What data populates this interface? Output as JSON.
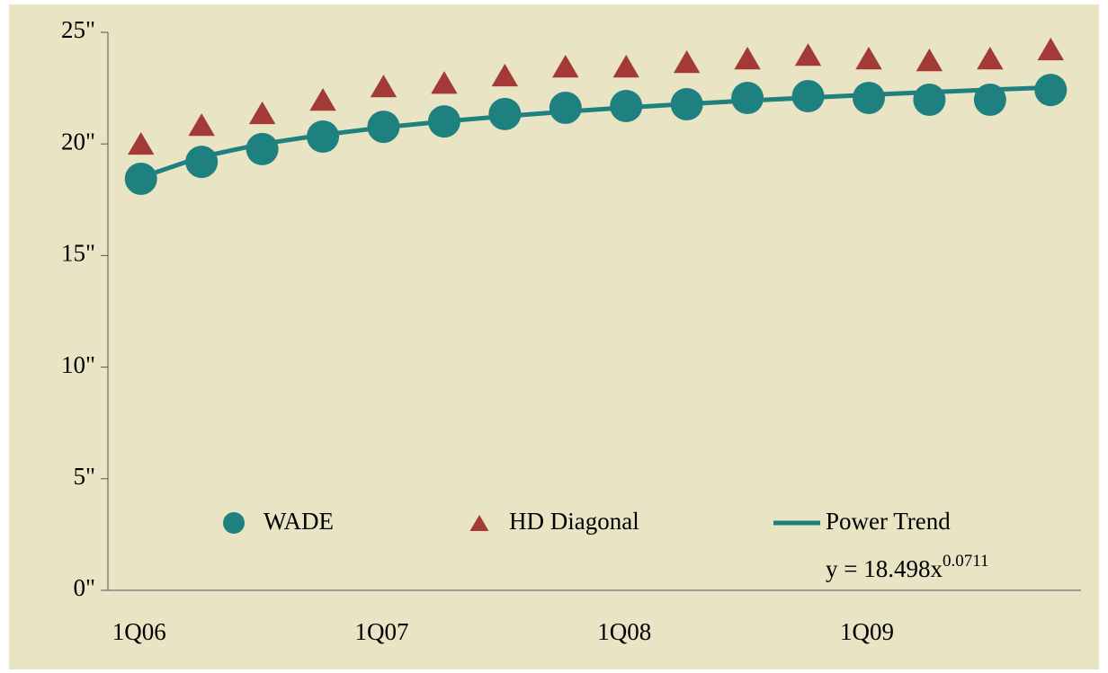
{
  "chart_data": {
    "type": "line",
    "categories": [
      "1Q06",
      null,
      null,
      null,
      "1Q07",
      null,
      null,
      null,
      "1Q08",
      null,
      null,
      null,
      "1Q09",
      null,
      null,
      null
    ],
    "series": [
      {
        "name": "WADE",
        "color": "#1f8080",
        "marker": "circle",
        "values": [
          18.44,
          19.2,
          19.77,
          20.33,
          20.77,
          21.01,
          21.34,
          21.62,
          21.7,
          21.78,
          22.06,
          22.14,
          22.06,
          21.98,
          21.98,
          22.42
        ]
      },
      {
        "name": "HD Diagonal",
        "color": "#a33a35",
        "marker": "triangle",
        "values": [
          19.97,
          20.81,
          21.34,
          21.94,
          22.54,
          22.7,
          23.03,
          23.43,
          23.43,
          23.63,
          23.79,
          23.95,
          23.79,
          23.71,
          23.79,
          24.2
        ]
      },
      {
        "name": "Power Trend",
        "color": "#1f8080",
        "marker": "line",
        "values": [
          18.5,
          19.43,
          20.0,
          20.41,
          20.74,
          21.01,
          21.24,
          21.45,
          21.63,
          21.79,
          21.94,
          22.07,
          22.2,
          22.32,
          22.43,
          22.53
        ]
      }
    ],
    "annotation": {
      "text": "y = 18.498x",
      "exponent": "0.0711"
    },
    "ylim": [
      0,
      25
    ],
    "yticks": [
      {
        "value": 0,
        "label": "0\""
      },
      {
        "value": 5,
        "label": "5\""
      },
      {
        "value": 10,
        "label": "10\""
      },
      {
        "value": 15,
        "label": "15\""
      },
      {
        "value": 20,
        "label": "20\""
      },
      {
        "value": 25,
        "label": "25\""
      }
    ],
    "grid": false
  }
}
